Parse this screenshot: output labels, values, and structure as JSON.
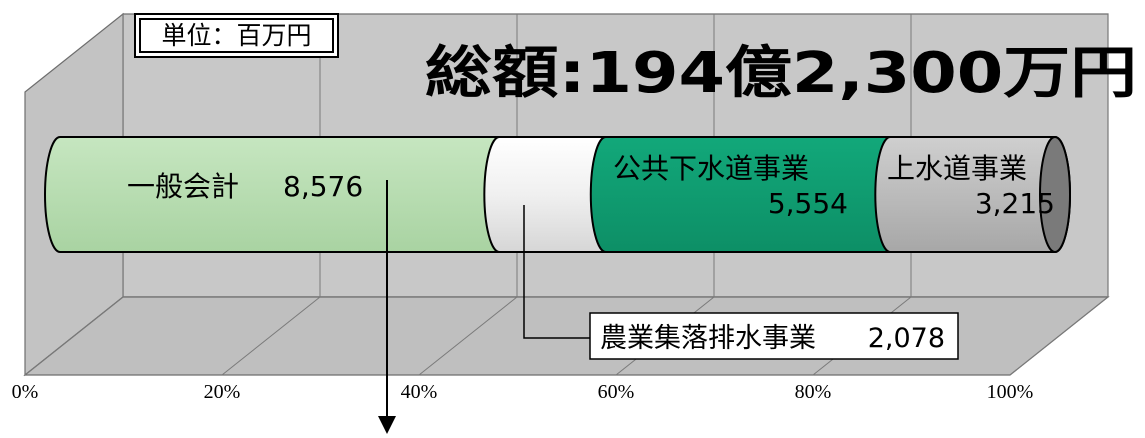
{
  "chart_data": {
    "type": "bar",
    "orientation": "horizontal",
    "stacked": true,
    "three_d": true,
    "unit_label": "単位：百万円",
    "total_label": "総額:194億2,300万円",
    "xlim": [
      0,
      100
    ],
    "x_ticks": [
      "0%",
      "20%",
      "40%",
      "60%",
      "80%",
      "100%"
    ],
    "grid": true,
    "series": [
      {
        "name": "一般会計",
        "value": 8576,
        "value_label": "8,576",
        "color": "#b5dcaf"
      },
      {
        "name": "農業集落排水事業",
        "value": 2078,
        "value_label": "2,078",
        "color": "#f2f2f2"
      },
      {
        "name": "公共下水道事業",
        "value": 5554,
        "value_label": "5,554",
        "color": "#109e73"
      },
      {
        "name": "上水道事業",
        "value": 3215,
        "value_label": "3,215",
        "color": "#b8b8b8"
      }
    ]
  }
}
